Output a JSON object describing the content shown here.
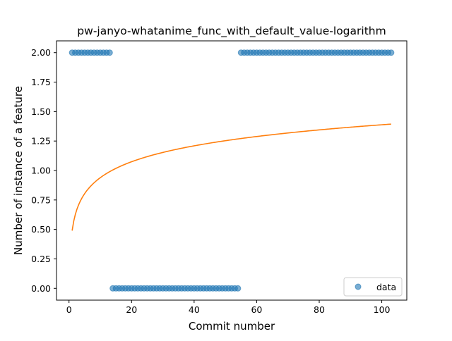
{
  "chart_data": {
    "type": "scatter",
    "title": "pw-janyo-whatanime_func_with_default_value-logarithm",
    "xlabel": "Commit number",
    "ylabel": "Number of instance of a feature",
    "xlim": [
      -4,
      108
    ],
    "ylim": [
      -0.1,
      2.1
    ],
    "xticks": [
      0,
      20,
      40,
      60,
      80,
      100
    ],
    "yticks": [
      0.0,
      0.25,
      0.5,
      0.75,
      1.0,
      1.25,
      1.5,
      1.75,
      2.0
    ],
    "xtick_labels": [
      "0",
      "20",
      "40",
      "60",
      "80",
      "100"
    ],
    "ytick_labels": [
      "0.00",
      "0.25",
      "0.50",
      "0.75",
      "1.00",
      "1.25",
      "1.50",
      "1.75",
      "2.00"
    ],
    "grid": false,
    "legend": {
      "placement": "lower-right",
      "entries": [
        "data"
      ]
    },
    "colors": {
      "data": "#1f77b4",
      "fit": "#ff7f0e"
    },
    "series": [
      {
        "name": "data",
        "kind": "scatter",
        "segments": [
          {
            "x_start": 1,
            "x_end": 13,
            "y": 2.0
          },
          {
            "x_start": 14,
            "x_end": 54,
            "y": 0.0
          },
          {
            "x_start": 55,
            "x_end": 103,
            "y": 2.0
          }
        ]
      },
      {
        "kind": "line",
        "model": "logarithmic",
        "x_range": [
          1,
          103
        ],
        "a": 0.49,
        "b": 0.195
      }
    ]
  }
}
